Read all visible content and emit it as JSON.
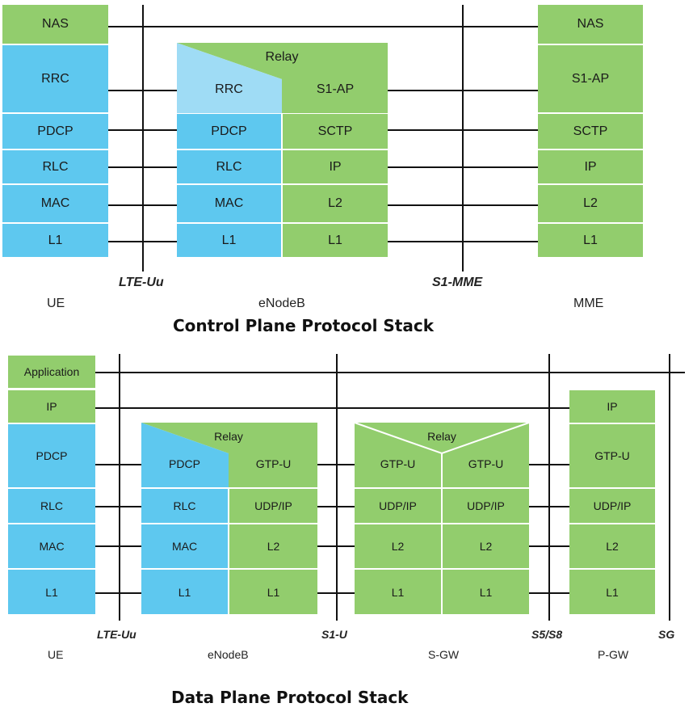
{
  "control_plane": {
    "title": "Control Plane Protocol Stack",
    "ue": {
      "name": "UE",
      "layers": [
        "NAS",
        "RRC",
        "PDCP",
        "RLC",
        "MAC",
        "L1"
      ]
    },
    "enodeb": {
      "name": "eNodeB",
      "relay": "Relay",
      "left_layers": [
        "RRC",
        "PDCP",
        "RLC",
        "MAC",
        "L1"
      ],
      "right_layers": [
        "S1-AP",
        "SCTP",
        "IP",
        "L2",
        "L1"
      ]
    },
    "mme": {
      "name": "MME",
      "layers": [
        "NAS",
        "S1-AP",
        "SCTP",
        "IP",
        "L2",
        "L1"
      ]
    },
    "interfaces": [
      "LTE-Uu",
      "S1-MME"
    ]
  },
  "data_plane": {
    "title": "Data Plane Protocol Stack",
    "ue": {
      "name": "UE",
      "layers": [
        "Application",
        "IP",
        "PDCP",
        "RLC",
        "MAC",
        "L1"
      ]
    },
    "enodeb": {
      "name": "eNodeB",
      "relay": "Relay",
      "left_layers": [
        "PDCP",
        "RLC",
        "MAC",
        "L1"
      ],
      "right_layers": [
        "GTP-U",
        "UDP/IP",
        "L2",
        "L1"
      ]
    },
    "sgw": {
      "name": "S-GW",
      "relay": "Relay",
      "left_layers": [
        "GTP-U",
        "UDP/IP",
        "L2",
        "L1"
      ],
      "right_layers": [
        "GTP-U",
        "UDP/IP",
        "L2",
        "L1"
      ]
    },
    "pgw": {
      "name": "P-GW",
      "layers": [
        "IP",
        "GTP-U",
        "UDP/IP",
        "L2",
        "L1"
      ]
    },
    "interfaces": [
      "LTE-Uu",
      "S1-U",
      "S5/S8",
      "SG"
    ]
  },
  "colors": {
    "blue": "#5ec8ef",
    "light_blue": "#9fdcf5",
    "green": "#92cd6d",
    "line": "#111111"
  }
}
